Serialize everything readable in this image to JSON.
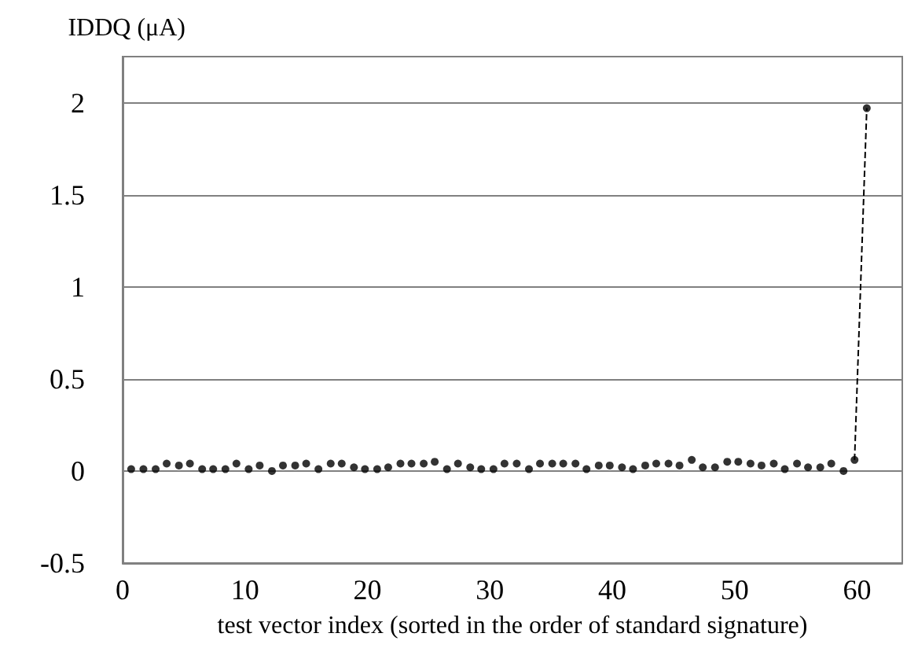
{
  "chart_data": {
    "type": "scatter",
    "xlabel": "test vector index (sorted in the order of standard signature)",
    "ylabel": "IDDQ (μA)",
    "xlim": [
      0,
      63.7
    ],
    "xticks": [
      0,
      10,
      20,
      30,
      40,
      50,
      60
    ],
    "ylim": [
      -0.5,
      2.25
    ],
    "yticks": [
      -0.5,
      0,
      0.5,
      1,
      1.5,
      2
    ],
    "grid": "y",
    "marker": "circle",
    "series": [
      {
        "color": "#000000",
        "x": [
          0.7,
          1.7,
          2.7,
          3.6,
          4.6,
          5.5,
          6.5,
          7.4,
          8.4,
          9.3,
          10.3,
          11.2,
          12.2,
          13.1,
          14.1,
          15.0,
          16.0,
          17.0,
          17.9,
          18.9,
          19.8,
          20.8,
          21.7,
          22.7,
          23.6,
          24.6,
          25.5,
          26.5,
          27.4,
          28.4,
          29.3,
          30.3,
          31.2,
          32.2,
          33.2,
          34.1,
          35.1,
          36.0,
          37.0,
          37.9,
          38.9,
          39.8,
          40.8,
          41.7,
          42.7,
          43.6,
          44.6,
          45.5,
          46.5,
          47.4,
          48.4,
          49.4,
          50.3,
          51.3,
          52.2,
          53.2,
          54.1,
          55.1,
          56.0,
          57.0,
          57.9,
          58.9,
          59.8,
          60.8
        ],
        "values": [
          0.01,
          0.01,
          0.01,
          0.04,
          0.03,
          0.04,
          0.01,
          0.01,
          0.01,
          0.04,
          0.01,
          0.03,
          0.0,
          0.03,
          0.03,
          0.04,
          0.01,
          0.04,
          0.04,
          0.02,
          0.01,
          0.01,
          0.02,
          0.04,
          0.04,
          0.04,
          0.05,
          0.01,
          0.04,
          0.02,
          0.01,
          0.01,
          0.04,
          0.04,
          0.01,
          0.04,
          0.04,
          0.04,
          0.04,
          0.01,
          0.03,
          0.03,
          0.02,
          0.01,
          0.03,
          0.04,
          0.04,
          0.03,
          0.06,
          0.02,
          0.02,
          0.05,
          0.05,
          0.04,
          0.03,
          0.04,
          0.01,
          0.04,
          0.02,
          0.02,
          0.04,
          0.0,
          0.06,
          1.97
        ]
      },
      {
        "type": "line",
        "color": "#000000",
        "line_style": "dashed",
        "marker": "none",
        "x": [
          59.8,
          60.8
        ],
        "values": [
          0.06,
          1.97
        ]
      }
    ]
  }
}
